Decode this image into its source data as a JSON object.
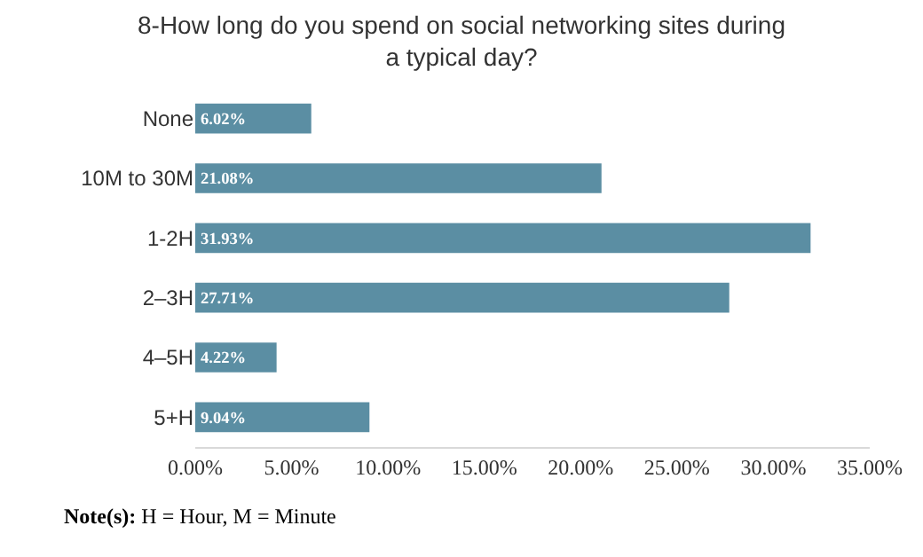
{
  "chart_data": {
    "type": "bar",
    "orientation": "horizontal",
    "title": "8-How long do you spend on social networking sites during a typical day?",
    "categories": [
      "None",
      "10M to 30M",
      "1-2H",
      "2–3H",
      "4–5H",
      "5+H"
    ],
    "values": [
      6.02,
      21.08,
      31.93,
      27.71,
      4.22,
      9.04
    ],
    "value_labels": [
      "6.02%",
      "21.08%",
      "31.93%",
      "27.71%",
      "4.22%",
      "9.04%"
    ],
    "color": "#5b8ea3",
    "xlim": [
      0,
      35
    ],
    "xticks": [
      {
        "value": 0,
        "label": "0.00%"
      },
      {
        "value": 5,
        "label": "5.00%"
      },
      {
        "value": 10,
        "label": "10.00%"
      },
      {
        "value": 15,
        "label": "15.00%"
      },
      {
        "value": 20,
        "label": "20.00%"
      },
      {
        "value": 25,
        "label": "25.00%"
      },
      {
        "value": 30,
        "label": "30.00%"
      },
      {
        "value": 35,
        "label": "35.00%"
      }
    ],
    "annotations": [
      "Note(s): H = Hour, M = Minute"
    ]
  }
}
